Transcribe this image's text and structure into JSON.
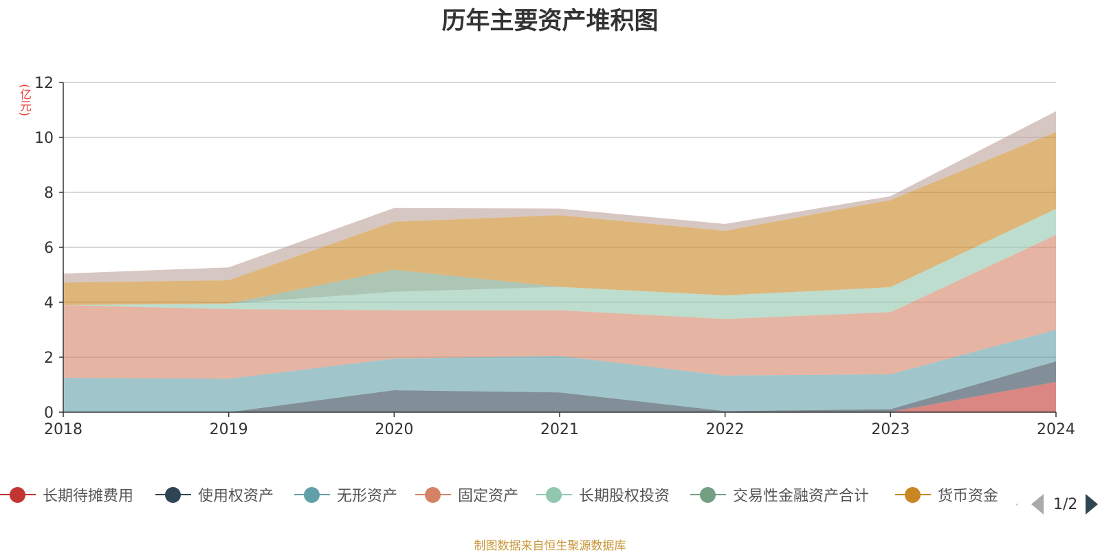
{
  "title": "历年主要资产堆积图",
  "unit_label": "(亿元)",
  "footer": "制图数据来自恒生聚源数据库",
  "legend_pager": {
    "text": "1/2"
  },
  "chart_data": {
    "type": "area",
    "stacked": true,
    "title": "历年主要资产堆积图",
    "ylabel": "(亿元)",
    "ylim": [
      0,
      12
    ],
    "yticks": [
      0,
      2,
      4,
      6,
      8,
      10,
      12
    ],
    "x": [
      "2018",
      "2019",
      "2020",
      "2021",
      "2022",
      "2023",
      "2024"
    ],
    "grid": true,
    "legend_position": "bottom",
    "series": [
      {
        "name": "长期待摊费用",
        "color": "#c23531",
        "values": [
          0,
          0,
          0,
          0,
          0,
          0.01,
          1.1
        ]
      },
      {
        "name": "使用权资产",
        "color": "#2f4554",
        "values": [
          0,
          0,
          0.8,
          0.72,
          0.04,
          0.1,
          0.75
        ]
      },
      {
        "name": "无形资产",
        "color": "#61a0a8",
        "values": [
          1.25,
          1.22,
          1.15,
          1.33,
          1.29,
          1.27,
          1.15
        ]
      },
      {
        "name": "固定资产",
        "color": "#d48265",
        "values": [
          2.65,
          2.53,
          1.76,
          1.66,
          2.06,
          2.26,
          3.45
        ]
      },
      {
        "name": "长期股权投资",
        "color": "#91c7ae",
        "values": [
          0,
          0.2,
          0.67,
          0.85,
          0.86,
          0.91,
          0.95
        ]
      },
      {
        "name": "交易性金融资产合计",
        "color": "#749f83",
        "values": [
          0,
          0,
          0.8,
          0,
          0,
          0,
          0
        ]
      },
      {
        "name": "货币资金",
        "color": "#ca8622",
        "values": [
          0.82,
          0.85,
          1.75,
          2.61,
          2.35,
          3.17,
          2.8
        ]
      },
      {
        "name": "",
        "color": "#bda29a",
        "values": [
          0.32,
          0.47,
          0.5,
          0.24,
          0.25,
          0.14,
          0.75
        ]
      }
    ]
  }
}
